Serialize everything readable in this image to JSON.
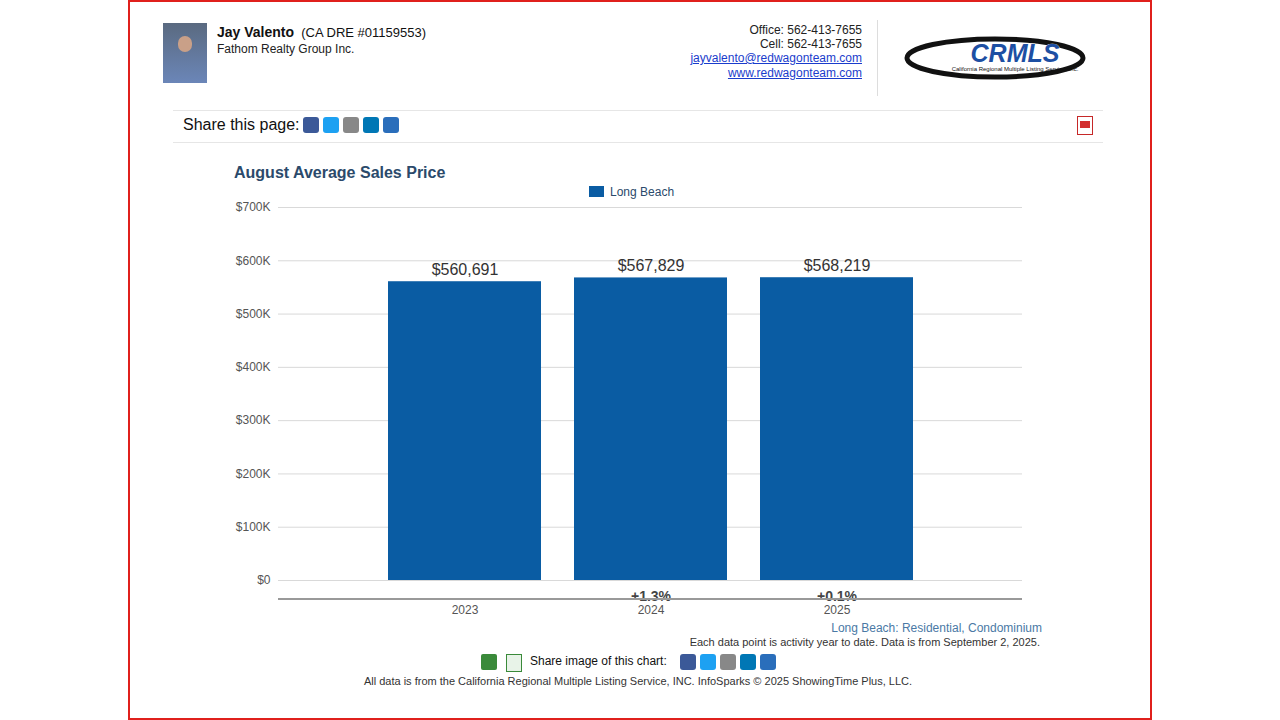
{
  "page": {
    "agent": "Jay Valento",
    "license": "(CA DRE #01159553)",
    "company": "Fathom Realty Group Inc.",
    "office": "Office: 562-413-7655",
    "cell": "Cell: 562-413-7655",
    "email": "jayvalento@redwagonteam.com",
    "website": "www.redwagonteam.com",
    "logo": "CRMLS",
    "logo_subtitle": "California Regional Multiple Listing Service, Inc.",
    "share_page": "Share this page:",
    "share_chart": "Share image of this chart:",
    "footer": "All data is from the California Regional Multiple Listing Service, INC. InfoSparks © 2025 ShowingTime Plus, LLC."
  },
  "chart_data": {
    "type": "bar",
    "title": "August Average Sales Price",
    "categories": [
      "2023",
      "2024",
      "2025"
    ],
    "series": [
      {
        "name": "Long Beach",
        "color": "#0a5ca3",
        "values": [
          560691,
          567829,
          568219
        ],
        "value_labels": [
          "$560,691",
          "$567,829",
          "$568,219"
        ]
      }
    ],
    "changes": [
      null,
      1.3,
      0.1
    ],
    "change_labels": [
      null,
      "+1.3%",
      "+0.1%"
    ],
    "ylim": [
      0,
      700000
    ],
    "yticks": [
      {
        "value": 0,
        "label": "$0"
      },
      {
        "value": 100000,
        "label": "$100K"
      },
      {
        "value": 200000,
        "label": "$200K"
      },
      {
        "value": 300000,
        "label": "$300K"
      },
      {
        "value": 400000,
        "label": "$400K"
      },
      {
        "value": 500000,
        "label": "$500K"
      },
      {
        "value": 600000,
        "label": "$600K"
      },
      {
        "value": 700000,
        "label": "$700K"
      }
    ],
    "grid": true,
    "legend": "top",
    "data_labels": true,
    "notes": [
      "Long Beach: Residential, Condominium",
      "Each data point is activity year to date. Data is from September 2, 2025."
    ]
  }
}
